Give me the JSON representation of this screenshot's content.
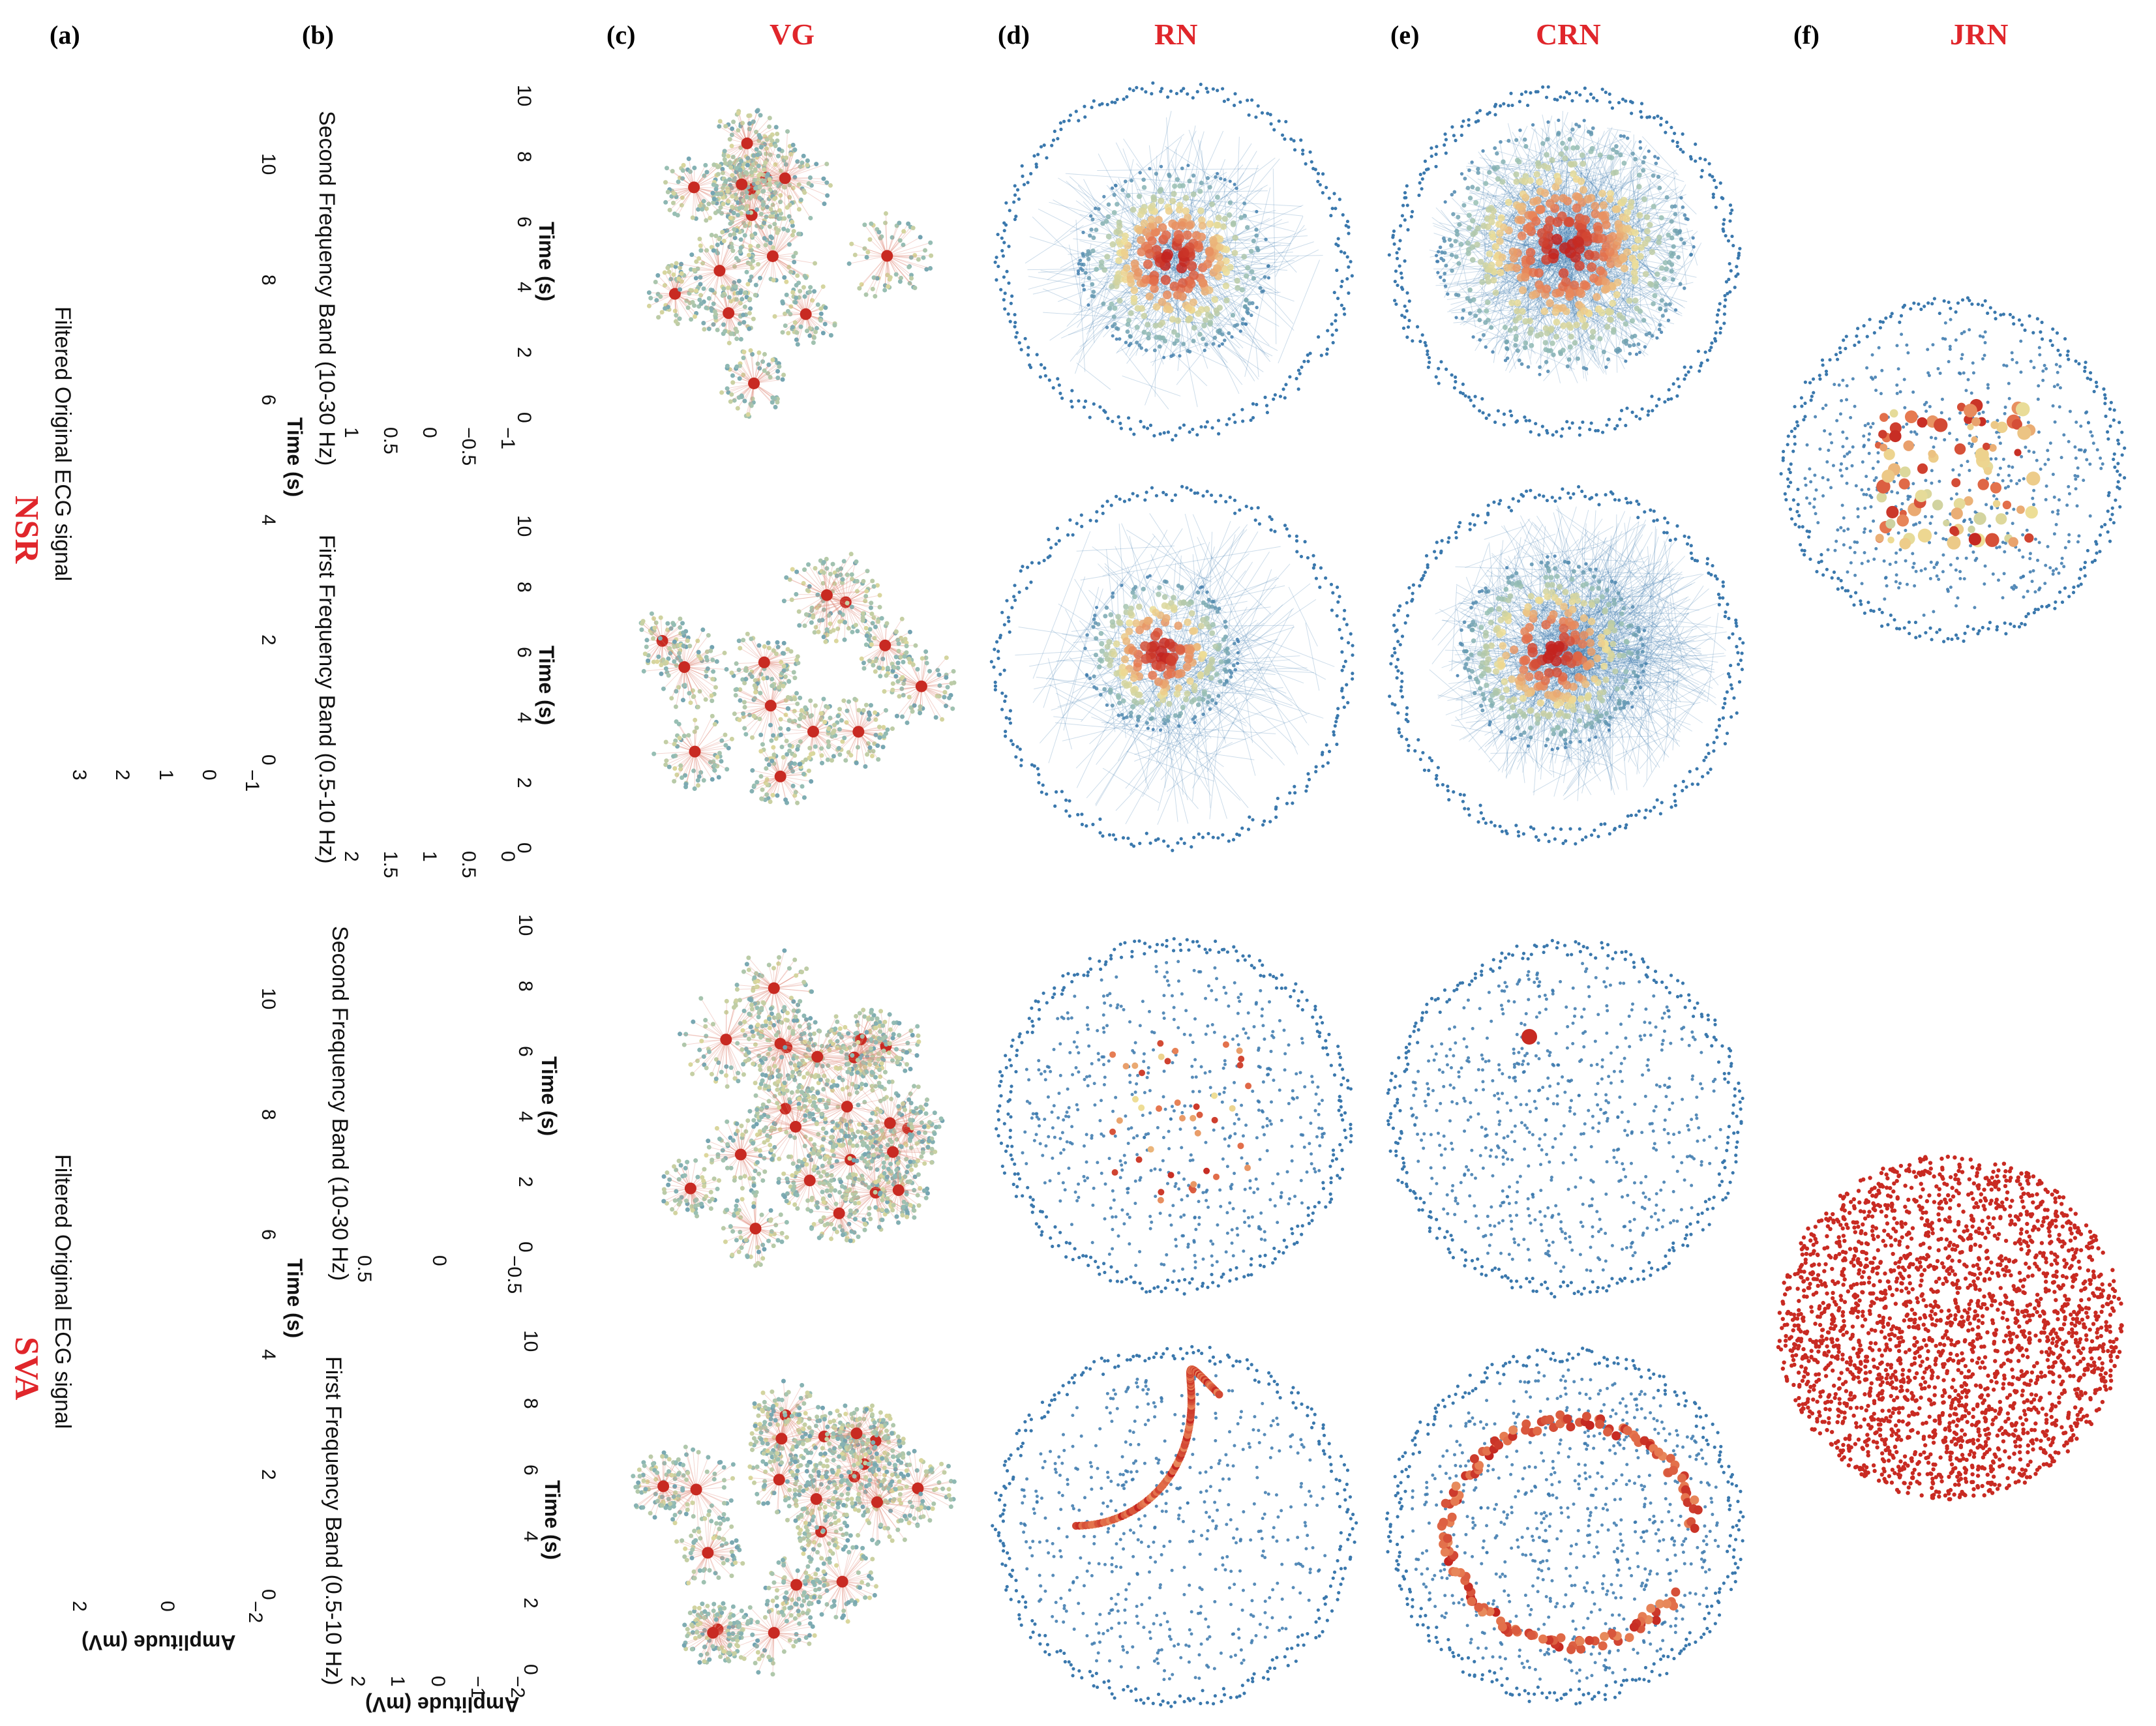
{
  "panels": {
    "a": "(a)",
    "b": "(b)",
    "c": "(c)",
    "d": "(d)",
    "e": "(e)",
    "f": "(f)"
  },
  "methods": [
    "VG",
    "RN",
    "CRN",
    "JRN"
  ],
  "rows": [
    "NSR",
    "SVA"
  ],
  "axes": {
    "time": "Time (s)",
    "amplitude": "Amplitude (mV)",
    "filtered": "Filtered Original ECG signal",
    "second_band": "Second Frequency Band (10-30 Hz)",
    "first_band": "First Frequency Band (0.5-10 Hz)"
  },
  "ticks": {
    "time": [
      "0",
      "2",
      "4",
      "6",
      "8",
      "10"
    ],
    "nsr_a": [
      "3",
      "2",
      "1",
      "0",
      "−1"
    ],
    "nsr_b2": [
      "1",
      "0.5",
      "0",
      "−0.5",
      "−1"
    ],
    "nsr_b1": [
      "2",
      "1.5",
      "1",
      "0.5",
      "0"
    ],
    "sva_a": [
      "2",
      "0",
      "−2"
    ],
    "sva_b2": [
      "0.5",
      "0",
      "−0.5"
    ],
    "sva_b1": [
      "2",
      "1",
      "0",
      "−1",
      "−2"
    ]
  },
  "colors": {
    "title_red": "#e0262b",
    "ecg_blue": "#1f4e9c",
    "node_blue": "#3a78ad",
    "node_red": "#c82a22"
  }
}
